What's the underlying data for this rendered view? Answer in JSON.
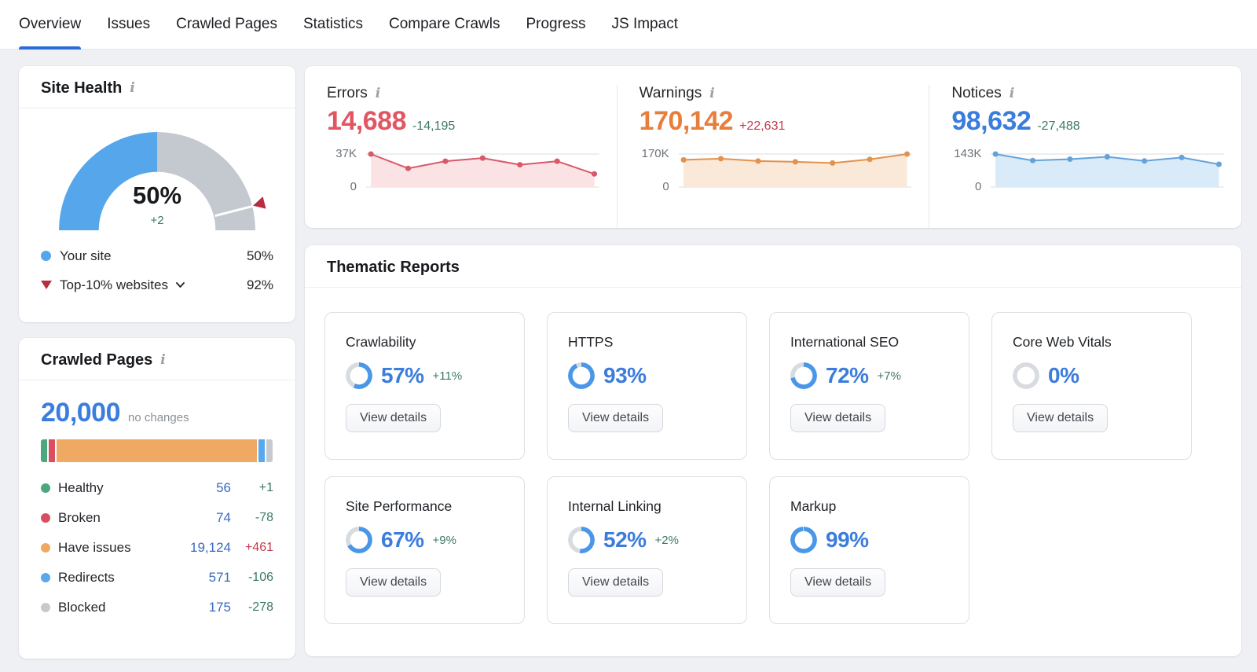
{
  "nav": {
    "tabs": [
      {
        "label": "Overview",
        "active": true
      },
      {
        "label": "Issues",
        "active": false
      },
      {
        "label": "Crawled Pages",
        "active": false
      },
      {
        "label": "Statistics",
        "active": false
      },
      {
        "label": "Compare Crawls",
        "active": false
      },
      {
        "label": "Progress",
        "active": false
      },
      {
        "label": "JS Impact",
        "active": false
      }
    ]
  },
  "colors": {
    "accent_blue": "#3b7ddd",
    "donut_blue": "#4a97e8",
    "donut_gray": "#d8dbe0",
    "gauge_blue": "#55a6ea",
    "gauge_gray": "#c4c8cf",
    "benchmark_red": "#b72c3f",
    "good_green": "#3c7a60",
    "bad_red": "#c23a4e",
    "healthy_green": "#4aa87c",
    "broken_red": "#d94f5f",
    "issues_orange": "#f0a963",
    "redirects_blue": "#59a7ec",
    "blocked_gray": "#c6cad0",
    "legend_value_blue": "#3a6bbf"
  },
  "site_health": {
    "title": "Site Health",
    "info_icon": "i",
    "score": "50%",
    "score_delta": "+2",
    "gauge": {
      "your_site_pct": 50,
      "benchmark_pct": 92
    },
    "legend": [
      {
        "label": "Your site",
        "value": "50%",
        "marker": "blue-dot",
        "chevron": false
      },
      {
        "label": "Top-10% websites",
        "value": "92%",
        "marker": "red-triangle-down",
        "chevron": true
      }
    ]
  },
  "crawled_pages": {
    "title": "Crawled Pages",
    "info_icon": "i",
    "total": "20,000",
    "change_note": "no changes",
    "bar_segments": [
      {
        "name": "healthy",
        "color": "healthy_green",
        "pct": 2.7
      },
      {
        "name": "broken",
        "color": "broken_red",
        "pct": 2.7
      },
      {
        "name": "have-issues",
        "color": "issues_orange",
        "pct": 86.2
      },
      {
        "name": "redirects",
        "color": "redirects_blue",
        "pct": 2.7
      },
      {
        "name": "blocked",
        "color": "blocked_gray",
        "pct": 2.7
      }
    ],
    "legend": [
      {
        "label": "Healthy",
        "value": "56",
        "delta": "+1",
        "trend": "good",
        "dot": "healthy_green"
      },
      {
        "label": "Broken",
        "value": "74",
        "delta": "-78",
        "trend": "good",
        "dot": "broken_red"
      },
      {
        "label": "Have issues",
        "value": "19,124",
        "delta": "+461",
        "trend": "bad",
        "dot": "issues_orange"
      },
      {
        "label": "Redirects",
        "value": "571",
        "delta": "-106",
        "trend": "good",
        "dot": "redirects_blue"
      },
      {
        "label": "Blocked",
        "value": "175",
        "delta": "-278",
        "trend": "good",
        "dot": "blocked_gray"
      }
    ]
  },
  "issues_summary": {
    "columns": [
      {
        "key": "errors",
        "label": "Errors",
        "info_icon": "i",
        "value": "14,688",
        "delta": "-14,195",
        "trend": "good",
        "value_color": "#e25663",
        "line": "#d9596a",
        "fill": "#fbe2e5",
        "ymax_label": "37K",
        "ymin_label": "0",
        "chart_data": {
          "type": "line",
          "ymax": 37000,
          "values": [
            37000,
            21000,
            29000,
            32500,
            25000,
            29000,
            14688
          ]
        }
      },
      {
        "key": "warnings",
        "label": "Warnings",
        "info_icon": "i",
        "value": "170,142",
        "delta": "+22,631",
        "trend": "bad",
        "value_color": "#e87e3c",
        "line": "#e3924d",
        "fill": "#fae8d8",
        "ymax_label": "170K",
        "ymin_label": "0",
        "chart_data": {
          "type": "line",
          "ymax": 170000,
          "values": [
            140000,
            146000,
            134000,
            130000,
            124000,
            143000,
            170142
          ]
        }
      },
      {
        "key": "notices",
        "label": "Notices",
        "info_icon": "i",
        "value": "98,632",
        "delta": "-27,488",
        "trend": "good",
        "value_color": "#3b7ddd",
        "line": "#64a3da",
        "fill": "#d9eaf8",
        "ymax_label": "143K",
        "ymin_label": "0",
        "chart_data": {
          "type": "line",
          "ymax": 143000,
          "values": [
            143000,
            115000,
            121000,
            131000,
            113000,
            128000,
            98632
          ]
        }
      }
    ]
  },
  "thematic_reports": {
    "title": "Thematic Reports",
    "button_label": "View details",
    "cards": [
      {
        "title": "Crawlability",
        "pct": "57%",
        "value": 57,
        "delta": "+11%"
      },
      {
        "title": "HTTPS",
        "pct": "93%",
        "value": 93,
        "delta": ""
      },
      {
        "title": "International SEO",
        "pct": "72%",
        "value": 72,
        "delta": "+7%"
      },
      {
        "title": "Core Web Vitals",
        "pct": "0%",
        "value": 0,
        "delta": ""
      },
      {
        "title": "Site Performance",
        "pct": "67%",
        "value": 67,
        "delta": "+9%"
      },
      {
        "title": "Internal Linking",
        "pct": "52%",
        "value": 52,
        "delta": "+2%"
      },
      {
        "title": "Markup",
        "pct": "99%",
        "value": 99,
        "delta": ""
      }
    ]
  }
}
